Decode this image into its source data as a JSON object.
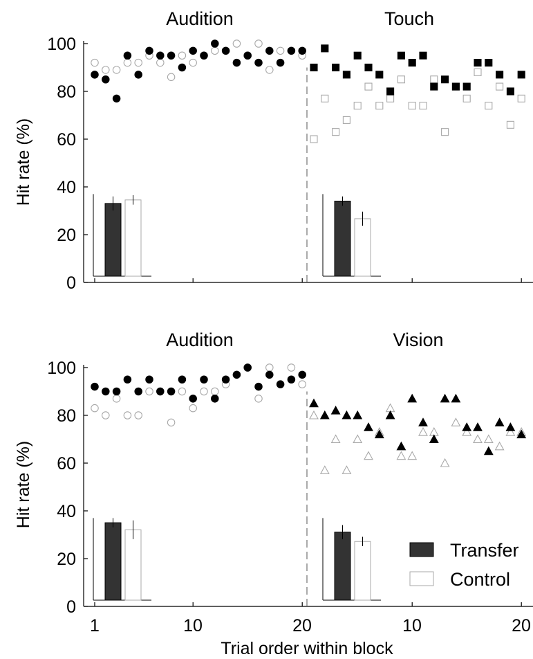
{
  "figure": {
    "xlabel": "Trial order within block",
    "ylabel": "Hit rate (%)",
    "legend": [
      {
        "label": "Transfer",
        "fill": "#333333",
        "stroke": "#000000"
      },
      {
        "label": "Control",
        "fill": "#ffffff",
        "stroke": "#aaaaaa"
      }
    ],
    "yticks": [
      "0",
      "20",
      "40",
      "60",
      "80",
      "100"
    ],
    "xticks_left": [
      "1",
      "10",
      "20"
    ],
    "xticks_right": [
      "10",
      "20"
    ]
  },
  "colors": {
    "transfer": "#000000",
    "control": "#a8a8a8",
    "bar_transfer": "#333333"
  },
  "chart_data": [
    {
      "type": "scatter",
      "panel": "top",
      "ylim": [
        0,
        100
      ],
      "segments": [
        {
          "title": "Audition",
          "marker": "circle",
          "x": [
            1,
            2,
            3,
            4,
            5,
            6,
            7,
            8,
            9,
            10,
            11,
            12,
            13,
            14,
            15,
            16,
            17,
            18,
            19,
            20
          ],
          "series": [
            {
              "name": "Transfer",
              "values": [
                87,
                85,
                77,
                95,
                87,
                97,
                95,
                95,
                90,
                97,
                95,
                100,
                97,
                92,
                95,
                92,
                97,
                92,
                97,
                97
              ]
            },
            {
              "name": "Control",
              "values": [
                92,
                89,
                89,
                92,
                92,
                95,
                92,
                86,
                95,
                92,
                95,
                97,
                97,
                100,
                95,
                100,
                89,
                97,
                97,
                95
              ]
            }
          ]
        },
        {
          "title": "Touch",
          "marker": "square",
          "x": [
            1,
            2,
            3,
            4,
            5,
            6,
            7,
            8,
            9,
            10,
            11,
            12,
            13,
            14,
            15,
            16,
            17,
            18,
            19,
            20
          ],
          "series": [
            {
              "name": "Transfer",
              "values": [
                90,
                98,
                90,
                87,
                95,
                90,
                87,
                80,
                95,
                92,
                95,
                82,
                85,
                82,
                82,
                92,
                92,
                87,
                80,
                87
              ]
            },
            {
              "name": "Control",
              "values": [
                60,
                77,
                63,
                68,
                74,
                82,
                74,
                77,
                85,
                74,
                74,
                85,
                63,
                82,
                77,
                88,
                74,
                82,
                66,
                77
              ]
            }
          ]
        }
      ],
      "insets": [
        {
          "segment": "Audition",
          "values": [
            {
              "name": "Transfer",
              "value": 31,
              "err": 3
            },
            {
              "name": "Control",
              "value": 32.5,
              "err": 2
            }
          ]
        },
        {
          "segment": "Touch",
          "values": [
            {
              "name": "Transfer",
              "value": 32,
              "err": 2
            },
            {
              "name": "Control",
              "value": 24.5,
              "err": 3
            }
          ]
        }
      ]
    },
    {
      "type": "scatter",
      "panel": "bottom",
      "ylim": [
        0,
        100
      ],
      "segments": [
        {
          "title": "Audition",
          "marker": "circle",
          "x": [
            1,
            2,
            3,
            4,
            5,
            6,
            7,
            8,
            9,
            10,
            11,
            12,
            13,
            14,
            15,
            16,
            17,
            18,
            19,
            20
          ],
          "series": [
            {
              "name": "Transfer",
              "values": [
                92,
                90,
                90,
                95,
                90,
                95,
                90,
                90,
                95,
                87,
                95,
                87,
                95,
                97,
                100,
                92,
                97,
                93,
                95,
                97
              ]
            },
            {
              "name": "Control",
              "values": [
                83,
                80,
                87,
                80,
                80,
                90,
                90,
                77,
                90,
                83,
                90,
                90,
                93,
                97,
                100,
                87,
                100,
                93,
                100,
                93
              ]
            }
          ]
        },
        {
          "title": "Vision",
          "marker": "triangle",
          "x": [
            1,
            2,
            3,
            4,
            5,
            6,
            7,
            8,
            9,
            10,
            11,
            12,
            13,
            14,
            15,
            16,
            17,
            18,
            19,
            20
          ],
          "series": [
            {
              "name": "Transfer",
              "values": [
                85,
                80,
                82,
                80,
                80,
                75,
                72,
                80,
                67,
                87,
                77,
                70,
                87,
                87,
                75,
                75,
                65,
                77,
                75,
                72
              ]
            },
            {
              "name": "Control",
              "values": [
                80,
                57,
                70,
                57,
                70,
                63,
                73,
                83,
                63,
                63,
                73,
                73,
                60,
                77,
                73,
                70,
                70,
                67,
                73,
                73
              ]
            }
          ]
        }
      ],
      "insets": [
        {
          "segment": "Audition",
          "values": [
            {
              "name": "Transfer",
              "value": 33,
              "err": 2
            },
            {
              "name": "Control",
              "value": 30,
              "err": 4
            }
          ]
        },
        {
          "segment": "Vision",
          "values": [
            {
              "name": "Transfer",
              "value": 29,
              "err": 3
            },
            {
              "name": "Control",
              "value": 25,
              "err": 2
            }
          ]
        }
      ]
    }
  ]
}
